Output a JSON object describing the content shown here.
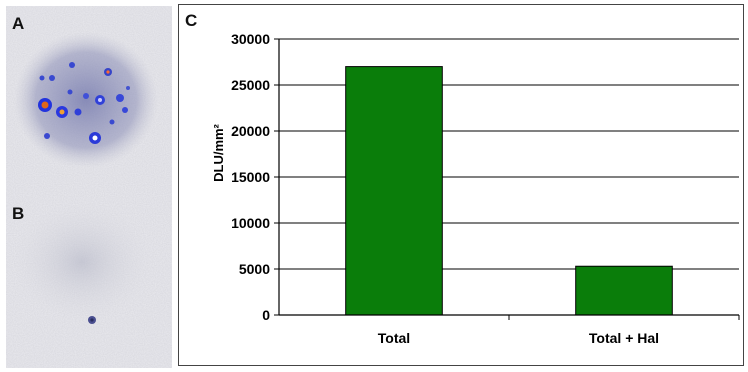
{
  "panels": {
    "a": "A",
    "b": "B",
    "c": "C"
  },
  "colors": {
    "bar": "#0a7d0a",
    "grid": "#000000"
  },
  "chart_data": {
    "type": "bar",
    "categories": [
      "Total",
      "Total + Hal"
    ],
    "values": [
      27000,
      5300
    ],
    "title": "",
    "xlabel": "",
    "ylabel": "DLU/mm²",
    "ylim": [
      0,
      30000
    ],
    "yticks": [
      "0",
      "5000",
      "10000",
      "15000",
      "20000",
      "25000",
      "30000"
    ],
    "grid": true
  }
}
